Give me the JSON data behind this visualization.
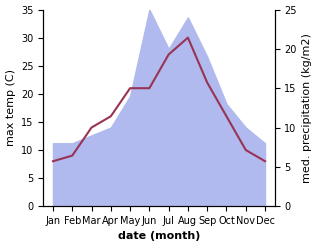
{
  "months": [
    "Jan",
    "Feb",
    "Mar",
    "Apr",
    "May",
    "Jun",
    "Jul",
    "Aug",
    "Sep",
    "Oct",
    "Nov",
    "Dec"
  ],
  "temperature": [
    8.0,
    9.0,
    14.0,
    16.0,
    21.0,
    21.0,
    27.0,
    30.0,
    22.0,
    16.0,
    10.0,
    8.0
  ],
  "precipitation": [
    8.0,
    8.0,
    9.0,
    10.0,
    14.0,
    25.0,
    20.0,
    24.0,
    19.0,
    13.0,
    10.0,
    8.0
  ],
  "temp_color": "#993355",
  "precip_color": "#b0baee",
  "ylim_left": [
    0,
    35
  ],
  "ylim_right": [
    0,
    25
  ],
  "yticks_left": [
    0,
    5,
    10,
    15,
    20,
    25,
    30,
    35
  ],
  "yticks_right": [
    0,
    5,
    10,
    15,
    20,
    25
  ],
  "xlabel": "date (month)",
  "ylabel_left": "max temp (C)",
  "ylabel_right": "med. precipitation (kg/m2)",
  "bg_color": "#ffffff",
  "label_fontsize": 8,
  "tick_fontsize": 7,
  "linewidth": 1.5
}
